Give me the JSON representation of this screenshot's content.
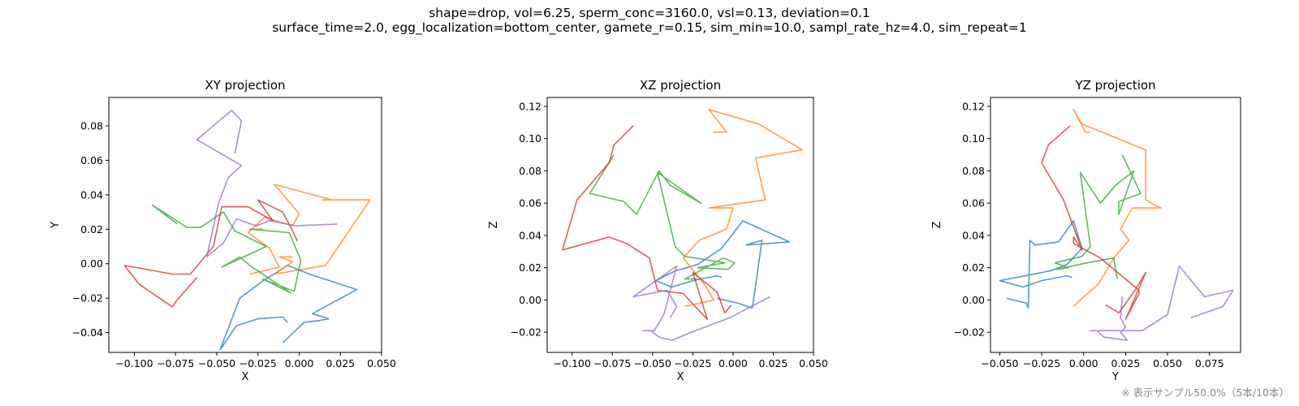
{
  "suptitle": {
    "line1": "shape=drop, vol=6.25, sperm_conc=3160.0, vsl=0.13, deviation=0.1",
    "line2": "surface_time=2.0, egg_localization=bottom_center, gamete_r=0.15, sim_min=10.0, sampl_rate_hz=4.0, sim_repeat=1"
  },
  "footnote": "※ 表示サンプル50.0%（5本/10本）",
  "colors": {
    "series": [
      "#1f77b4",
      "#ff7f0e",
      "#2ca02c",
      "#d62728",
      "#9467bd"
    ],
    "line_alpha": 0.75
  },
  "chart_data": [
    {
      "type": "line",
      "title": "XY projection",
      "xlabel": "X",
      "ylabel": "Y",
      "xticks": [
        -0.1,
        -0.075,
        -0.05,
        -0.025,
        0.0,
        0.025,
        0.05
      ],
      "xticklabels": [
        "−0.100",
        "−0.075",
        "−0.050",
        "−0.025",
        "0.000",
        "0.025",
        "0.050"
      ],
      "yticks": [
        -0.04,
        -0.02,
        0.0,
        0.02,
        0.04,
        0.06,
        0.08
      ],
      "yticklabels": [
        "−0.04",
        "−0.02",
        "0.00",
        "0.02",
        "0.04",
        "0.06",
        "0.08"
      ],
      "xlim": [
        -0.1155,
        0.05
      ],
      "ylim": [
        -0.0515,
        0.0965
      ],
      "series": [
        {
          "x": [
            -0.01,
            0.003,
            0.012,
            0.018,
            0.008,
            0.035,
            0.006,
            -0.007,
            -0.022,
            -0.036,
            -0.048,
            -0.038,
            -0.025,
            -0.01,
            -0.007
          ],
          "y": [
            -0.046,
            -0.034,
            -0.033,
            -0.032,
            -0.029,
            -0.015,
            -0.006,
            -0.001,
            -0.01,
            -0.02,
            -0.05,
            -0.036,
            -0.032,
            -0.031,
            -0.034
          ]
        },
        {
          "x": [
            -0.03,
            -0.012,
            -0.018,
            -0.031,
            -0.021,
            -0.004,
            0.0,
            -0.015,
            0.02,
            0.014,
            0.043,
            0.016,
            -0.015,
            -0.004,
            -0.012,
            -0.004
          ],
          "y": [
            -0.006,
            -0.002,
            0.009,
            0.018,
            0.027,
            0.022,
            0.029,
            0.046,
            0.037,
            0.037,
            0.037,
            -0.001,
            -0.006,
            0.001,
            0.004,
            0.004
          ]
        },
        {
          "x": [
            -0.074,
            -0.089,
            -0.068,
            -0.06,
            -0.046,
            -0.039,
            -0.02,
            -0.047,
            -0.036,
            -0.03,
            -0.005,
            -0.022,
            -0.003,
            0.001,
            -0.006,
            -0.03,
            -0.022
          ],
          "y": [
            0.023,
            0.034,
            0.021,
            0.021,
            0.03,
            0.019,
            0.01,
            -0.002,
            0.004,
            -0.001,
            -0.017,
            -0.009,
            -0.016,
            0.002,
            0.018,
            0.02,
            0.02
          ]
        },
        {
          "x": [
            -0.062,
            -0.074,
            -0.077,
            -0.097,
            -0.106,
            -0.077,
            -0.066,
            -0.052,
            -0.047,
            -0.031,
            -0.016,
            -0.025,
            -0.01,
            -0.005,
            -0.005,
            -0.001
          ],
          "y": [
            -0.008,
            -0.021,
            -0.025,
            -0.012,
            -0.001,
            -0.006,
            -0.006,
            0.01,
            0.033,
            0.033,
            0.025,
            0.037,
            0.03,
            0.021,
            0.021,
            0.013
          ]
        },
        {
          "x": [
            0.023,
            -0.002,
            -0.018,
            -0.026,
            -0.038,
            -0.046,
            -0.051,
            -0.056,
            -0.049,
            -0.043,
            -0.035,
            -0.062,
            -0.041,
            -0.035,
            -0.039
          ],
          "y": [
            0.023,
            0.022,
            0.025,
            0.022,
            0.026,
            0.012,
            0.008,
            0.004,
            0.035,
            0.05,
            0.057,
            0.072,
            0.089,
            0.083,
            0.064
          ]
        }
      ]
    },
    {
      "type": "line",
      "title": "XZ projection",
      "xlabel": "X",
      "ylabel": "Z",
      "xticks": [
        -0.1,
        -0.075,
        -0.05,
        -0.025,
        0.0,
        0.025,
        0.05
      ],
      "xticklabels": [
        "−0.100",
        "−0.075",
        "−0.050",
        "−0.025",
        "0.000",
        "0.025",
        "0.050"
      ],
      "yticks": [
        -0.02,
        0.0,
        0.02,
        0.04,
        0.06,
        0.08,
        0.1,
        0.12
      ],
      "yticklabels": [
        "−0.02",
        "0.00",
        "0.02",
        "0.04",
        "0.06",
        "0.08",
        "0.10",
        "0.12"
      ],
      "xlim": [
        -0.1155,
        0.05
      ],
      "ylim": [
        -0.0325,
        0.1255
      ],
      "series": [
        {
          "x": [
            -0.01,
            0.003,
            0.012,
            0.018,
            0.008,
            0.035,
            0.006,
            -0.007,
            -0.022,
            -0.036,
            -0.048,
            -0.038,
            -0.025,
            -0.01,
            -0.007
          ],
          "y": [
            0.001,
            -0.002,
            -0.005,
            0.037,
            0.034,
            0.036,
            0.049,
            0.032,
            0.022,
            0.018,
            0.012,
            0.008,
            0.012,
            0.015,
            0.014
          ]
        },
        {
          "x": [
            -0.03,
            -0.012,
            -0.018,
            -0.031,
            -0.021,
            -0.004,
            0.0,
            -0.015,
            0.02,
            0.014,
            0.043,
            0.016,
            -0.015,
            -0.004,
            -0.012,
            -0.004
          ],
          "y": [
            -0.004,
            0.0,
            0.01,
            0.026,
            0.037,
            0.044,
            0.057,
            0.057,
            0.062,
            0.088,
            0.093,
            0.109,
            0.118,
            0.104,
            0.104,
            0.104
          ]
        },
        {
          "x": [
            -0.074,
            -0.089,
            -0.068,
            -0.06,
            -0.046,
            -0.039,
            -0.02,
            -0.047,
            -0.036,
            -0.03,
            -0.005,
            -0.022,
            -0.003,
            0.001,
            -0.006,
            -0.03,
            -0.022
          ],
          "y": [
            0.09,
            0.066,
            0.061,
            0.053,
            0.08,
            0.071,
            0.06,
            0.079,
            0.033,
            0.027,
            0.023,
            0.02,
            0.019,
            0.023,
            0.026,
            0.013,
            0.013
          ]
        },
        {
          "x": [
            -0.062,
            -0.074,
            -0.077,
            -0.097,
            -0.106,
            -0.077,
            -0.066,
            -0.052,
            -0.047,
            -0.031,
            -0.016,
            -0.025,
            -0.01,
            -0.005,
            -0.005,
            -0.001
          ],
          "y": [
            0.108,
            0.096,
            0.085,
            0.062,
            0.031,
            0.039,
            0.035,
            0.026,
            0.006,
            0.004,
            -0.012,
            0.017,
            0.005,
            -0.008,
            -0.008,
            -0.003
          ]
        },
        {
          "x": [
            0.023,
            -0.002,
            -0.018,
            -0.026,
            -0.038,
            -0.046,
            -0.051,
            -0.056,
            -0.049,
            -0.043,
            -0.035,
            -0.062,
            -0.041,
            -0.035,
            -0.039
          ],
          "y": [
            0.002,
            -0.011,
            -0.017,
            -0.02,
            -0.025,
            -0.023,
            -0.019,
            -0.019,
            -0.019,
            -0.009,
            0.021,
            0.002,
            0.006,
            -0.004,
            -0.011
          ]
        }
      ]
    },
    {
      "type": "line",
      "title": "YZ projection",
      "xlabel": "Y",
      "ylabel": "Z",
      "xticks": [
        -0.05,
        -0.025,
        0.0,
        0.025,
        0.05,
        0.075
      ],
      "xticklabels": [
        "−0.050",
        "−0.025",
        "0.000",
        "0.025",
        "0.050",
        "0.075"
      ],
      "yticks": [
        -0.02,
        0.0,
        0.02,
        0.04,
        0.06,
        0.08,
        0.1,
        0.12
      ],
      "yticklabels": [
        "−0.02",
        "0.00",
        "0.02",
        "0.04",
        "0.06",
        "0.08",
        "0.10",
        "0.12"
      ],
      "xlim": [
        -0.0555,
        0.0935
      ],
      "ylim": [
        -0.0325,
        0.1255
      ],
      "series": [
        {
          "x": [
            -0.046,
            -0.034,
            -0.033,
            -0.032,
            -0.029,
            -0.015,
            -0.006,
            -0.001,
            -0.01,
            -0.02,
            -0.05,
            -0.036,
            -0.025,
            -0.01,
            -0.007
          ],
          "y": [
            0.001,
            -0.002,
            -0.005,
            0.037,
            0.034,
            0.036,
            0.049,
            0.032,
            0.022,
            0.018,
            0.012,
            0.008,
            0.012,
            0.015,
            0.014
          ]
        },
        {
          "x": [
            -0.006,
            -0.002,
            0.009,
            0.018,
            0.027,
            0.022,
            0.029,
            0.046,
            0.037,
            0.037,
            0.037,
            -0.001,
            -0.006,
            0.001,
            0.004,
            0.004
          ],
          "y": [
            -0.004,
            0.0,
            0.01,
            0.026,
            0.037,
            0.044,
            0.057,
            0.057,
            0.062,
            0.088,
            0.093,
            0.109,
            0.118,
            0.104,
            0.104,
            0.104
          ]
        },
        {
          "x": [
            0.023,
            0.034,
            0.021,
            0.021,
            0.03,
            0.019,
            0.01,
            -0.002,
            0.004,
            -0.001,
            -0.017,
            -0.009,
            -0.016,
            0.002,
            0.018,
            0.02,
            0.02
          ],
          "y": [
            0.09,
            0.066,
            0.061,
            0.053,
            0.08,
            0.071,
            0.06,
            0.079,
            0.033,
            0.027,
            0.023,
            0.02,
            0.019,
            0.023,
            0.026,
            0.013,
            0.013
          ]
        },
        {
          "x": [
            -0.008,
            -0.021,
            -0.025,
            -0.012,
            -0.001,
            -0.006,
            -0.006,
            0.01,
            0.033,
            0.033,
            0.025,
            0.037,
            0.03,
            0.021,
            0.021,
            0.013
          ],
          "y": [
            0.108,
            0.096,
            0.085,
            0.062,
            0.031,
            0.039,
            0.035,
            0.026,
            0.006,
            0.004,
            -0.012,
            0.017,
            0.005,
            -0.008,
            -0.008,
            -0.003
          ]
        },
        {
          "x": [
            0.023,
            0.022,
            0.025,
            0.022,
            0.026,
            0.012,
            0.008,
            0.004,
            0.035,
            0.05,
            0.057,
            0.072,
            0.089,
            0.083,
            0.064
          ],
          "y": [
            0.002,
            -0.011,
            -0.017,
            -0.02,
            -0.025,
            -0.023,
            -0.019,
            -0.019,
            -0.019,
            -0.009,
            0.021,
            0.002,
            0.006,
            -0.004,
            -0.011
          ]
        }
      ]
    }
  ]
}
